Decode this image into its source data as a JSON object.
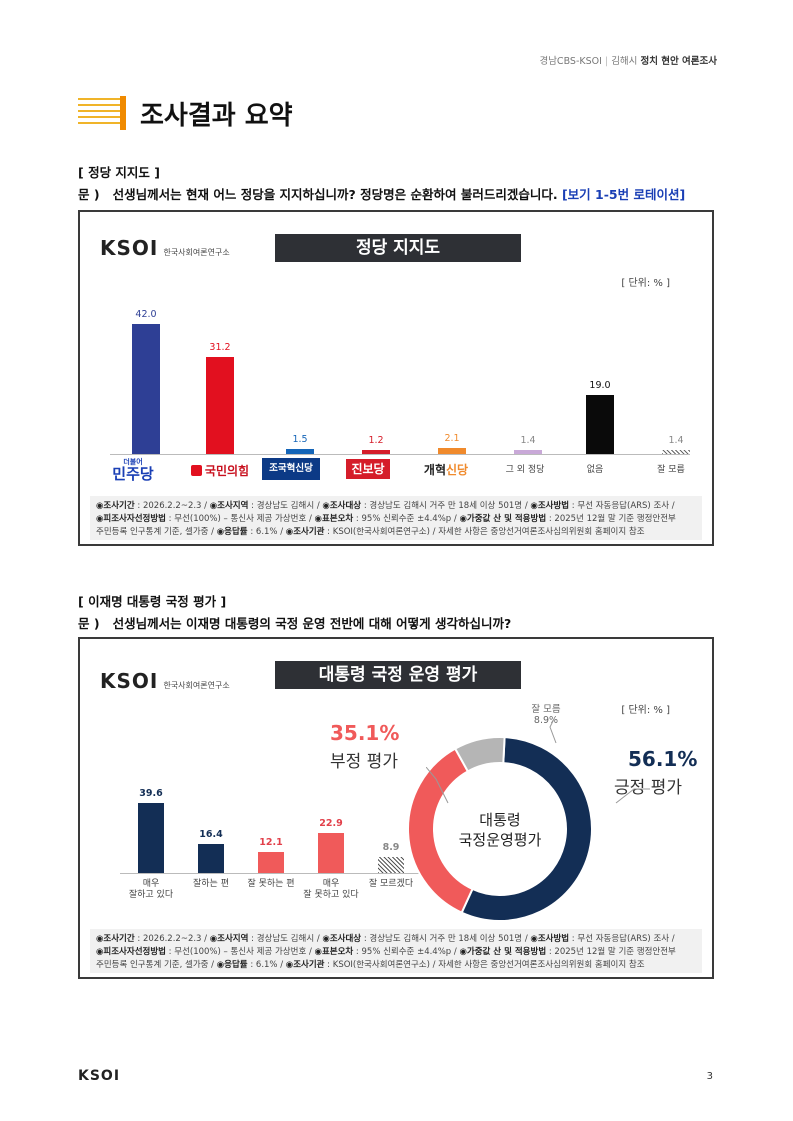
{
  "header": {
    "source": "경남CBS-KSOI",
    "separator": "|",
    "region": "김해시",
    "topic": "정치 현안 여론조사"
  },
  "page_title": "조사결과 요약",
  "section1": {
    "heading": "[ 정당 지지도 ]",
    "question_prefix": "문 )",
    "question": "선생님께서는 현재 어느 정당을 지지하십니까? 정당명은 순환하여 불러드리겠습니다.",
    "question_note": "[보기 1-5번 로테이션]"
  },
  "section2": {
    "heading": "[ 이재명 대통령 국정 평가 ]",
    "question_prefix": "문 )",
    "question": "선생님께서는 이재명 대통령의 국정 운영 전반에 대해 어떻게 생각하십니까?"
  },
  "logo": {
    "brand": "KSOI",
    "subtitle": "한국사회여론연구소"
  },
  "unit_label": "[ 단위: % ]",
  "footnote": {
    "period_label": "◉조사기간",
    "period": " : 2026.2.2~2.3 / ",
    "region_label": "◉조사지역",
    "region": " : 경상남도 김해시 / ",
    "target_label": "◉조사대상",
    "target": " : 경상남도 김해시 거주 만 18세 이상 501명 / ",
    "method_label": "◉조사방법",
    "method": " : 무선 자동응답(ARS) 조사 /",
    "sampling_label": "◉피조사자선정방법",
    "sampling": " : 무선(100%) – 통신사 제공 가상번호 / ",
    "error_label": "◉표본오차",
    "error": " : 95% 신뢰수준 ±4.4%p / ",
    "weight_label": "◉가중값 산 및 적용방법",
    "weight": " : 2025년 12월 말 기준 행정안전부",
    "weight2": "주민등록 인구통계 기준, 셀가중 / ",
    "response_label": "◉응답률",
    "response": " : 6.1% / ",
    "org_label": "◉조사기관",
    "org": " : KSOI(한국사회여론연구소) / ",
    "more": "자세한 사항은 중앙선거여론조사심의위원회 홈페이지 참조"
  },
  "chart_data": [
    {
      "type": "bar",
      "title": "정당 지지도",
      "categories": [
        "더불어민주당",
        "국민의힘",
        "조국혁신당",
        "진보당",
        "개혁신당",
        "그 외 정당",
        "없음",
        "잘 모름"
      ],
      "category_labels": {
        "minju_small": "더불어",
        "minju": "민주당",
        "ppp": "국민의힘",
        "rebuild": "조국혁신당",
        "progressive": "진보당",
        "reform_a": "개혁",
        "reform_b": "신당",
        "other": "그 외 정당",
        "none": "없음",
        "dk": "잘 모름"
      },
      "values": [
        42.0,
        31.2,
        1.5,
        1.2,
        2.1,
        1.4,
        19.0,
        1.4
      ],
      "value_labels": [
        "42.0",
        "31.2",
        "1.5",
        "1.2",
        "2.1",
        "1.4",
        "19.0",
        "1.4"
      ],
      "colors": [
        "#2e3f95",
        "#e2101f",
        "#1465b8",
        "#d51d2a",
        "#f08a2c",
        "#c9a9d8",
        "#0a0a0a",
        "#9a9a9a"
      ],
      "ylim": [
        0,
        50
      ]
    },
    {
      "type": "bar",
      "title": "대통령 국정 운영 평가",
      "categories": [
        "매우 잘하고 있다",
        "잘하는 편",
        "잘 못하는 편",
        "매우 잘 못하고 있다",
        "잘 모르겠다"
      ],
      "category_labels": [
        [
          "매우",
          "잘하고 있다"
        ],
        [
          "잘하는 편"
        ],
        [
          "잘 못하는 편"
        ],
        [
          "매우",
          "잘 못하고 있다"
        ],
        [
          "잘 모르겠다"
        ]
      ],
      "values": [
        39.6,
        16.4,
        12.1,
        22.9,
        8.9
      ],
      "value_labels": [
        "39.6",
        "16.4",
        "12.1",
        "22.9",
        "8.9"
      ],
      "colors": [
        "#132e55",
        "#132e55",
        "#f05a5a",
        "#f05a5a",
        "#999999"
      ],
      "ylim": [
        0,
        50
      ]
    },
    {
      "type": "pie",
      "center_label": [
        "대통령",
        "국정운영평가"
      ],
      "slices": [
        {
          "name": "긍정 평가",
          "value": 56.1,
          "label": "56.1%",
          "color": "#132e55"
        },
        {
          "name": "부정 평가",
          "value": 35.1,
          "label": "35.1%",
          "color": "#f05a5a"
        },
        {
          "name": "잘 모름",
          "value": 8.9,
          "label": "8.9%",
          "color": "#aaaaaa"
        }
      ]
    }
  ],
  "page_number": "3",
  "footer_logo": "KSOI"
}
